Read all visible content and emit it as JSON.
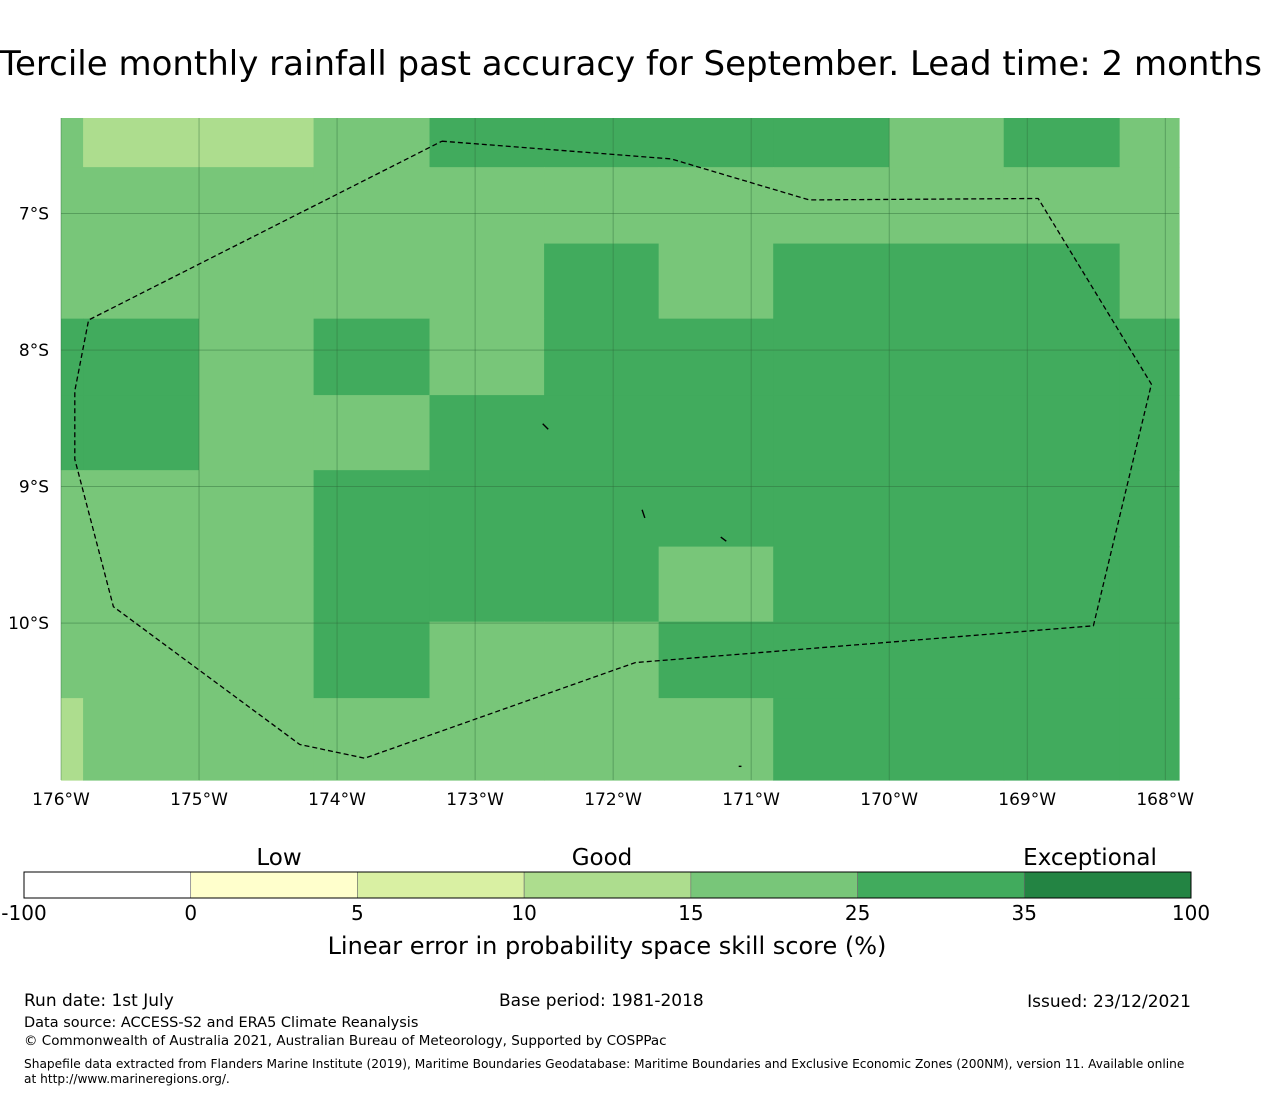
{
  "title": "Tercile monthly rainfall past accuracy for September. Lead time: 2 months",
  "map": {
    "lon_range": [
      -176.0,
      -167.9
    ],
    "lat_range": [
      -11.15,
      -6.3
    ],
    "lon_ticks": [
      {
        "value": -176,
        "label": "176°W"
      },
      {
        "value": -175,
        "label": "175°W"
      },
      {
        "value": -174,
        "label": "174°W"
      },
      {
        "value": -173,
        "label": "173°W"
      },
      {
        "value": -172,
        "label": "172°W"
      },
      {
        "value": -171,
        "label": "171°W"
      },
      {
        "value": -170,
        "label": "170°W"
      },
      {
        "value": -169,
        "label": "169°W"
      },
      {
        "value": -168,
        "label": "168°W"
      }
    ],
    "lat_ticks": [
      {
        "value": -7,
        "label": "7°S"
      },
      {
        "value": -8,
        "label": "8°S"
      },
      {
        "value": -9,
        "label": "9°S"
      },
      {
        "value": -10,
        "label": "10°S"
      }
    ],
    "gridlines": true,
    "boundary_line_style": "dashed",
    "grid_lon_edges": [
      -176.0,
      -175.84,
      -175.0,
      -174.17,
      -173.33,
      -172.5,
      -171.67,
      -170.84,
      -170.0,
      -169.17,
      -168.33,
      -167.9
    ],
    "grid_lat_edges": [
      -6.3,
      -6.66,
      -7.22,
      -7.77,
      -8.33,
      -8.88,
      -9.44,
      -9.99,
      -10.55,
      -11.15
    ],
    "cell_levels": [
      [
        4,
        3,
        3,
        4,
        5,
        5,
        5,
        5,
        4,
        5,
        4
      ],
      [
        4,
        4,
        4,
        4,
        4,
        4,
        4,
        4,
        4,
        4,
        4
      ],
      [
        4,
        4,
        4,
        4,
        4,
        5,
        4,
        5,
        5,
        5,
        4
      ],
      [
        5,
        5,
        4,
        5,
        4,
        5,
        5,
        5,
        5,
        5,
        5
      ],
      [
        5,
        5,
        4,
        4,
        5,
        5,
        5,
        5,
        5,
        5,
        5
      ],
      [
        4,
        4,
        4,
        5,
        5,
        5,
        5,
        5,
        5,
        5,
        5
      ],
      [
        4,
        4,
        4,
        5,
        5,
        5,
        4,
        5,
        5,
        5,
        5
      ],
      [
        4,
        4,
        4,
        5,
        4,
        4,
        5,
        5,
        5,
        5,
        5
      ],
      [
        3,
        4,
        4,
        4,
        4,
        4,
        4,
        5,
        5,
        5,
        5
      ]
    ],
    "eez_boundary": [
      [
        -173.24,
        -6.47
      ],
      [
        -171.58,
        -6.6
      ],
      [
        -170.58,
        -6.9
      ],
      [
        -168.92,
        -6.89
      ],
      [
        -168.1,
        -8.25
      ],
      [
        -168.52,
        -10.02
      ],
      [
        -171.84,
        -10.29
      ],
      [
        -173.8,
        -10.99
      ],
      [
        -174.27,
        -10.89
      ],
      [
        -175.62,
        -9.88
      ],
      [
        -175.9,
        -8.8
      ],
      [
        -175.9,
        -8.3
      ],
      [
        -175.8,
        -7.78
      ],
      [
        -173.24,
        -6.47
      ]
    ],
    "islands": [
      [
        [
          -172.51,
          -8.54
        ],
        [
          -172.47,
          -8.58
        ]
      ],
      [
        [
          -171.79,
          -9.17
        ],
        [
          -171.77,
          -9.23
        ]
      ],
      [
        [
          -171.22,
          -9.37
        ],
        [
          -171.18,
          -9.4
        ]
      ],
      [
        [
          -171.09,
          -11.05
        ],
        [
          -171.07,
          -11.05
        ]
      ]
    ]
  },
  "colorbar": {
    "boundaries": [
      -100,
      0,
      5,
      10,
      15,
      25,
      35,
      100
    ],
    "tick_labels": [
      "-100",
      "0",
      "5",
      "10",
      "15",
      "25",
      "35",
      "100"
    ],
    "colors": [
      "#ffffff",
      "#ffffcc",
      "#d9f0a3",
      "#addd8e",
      "#78c679",
      "#41ab5d",
      "#238443"
    ],
    "categories": [
      "Low",
      "Good",
      "Exceptional"
    ],
    "label": "Linear error in probability space skill score (%)"
  },
  "footer": {
    "run_date": "Run date: 1st July",
    "base_period": "Base period: 1981-2018",
    "issued": "Issued: 23/12/2021",
    "data_source": "Data source: ACCESS-S2 and ERA5 Climate Reanalysis",
    "copyright": "© Commonwealth of Australia 2021, Australian Bureau of Meteorology, Supported by COSPPac",
    "shapefile": "Shapefile data extracted from Flanders Marine Institute (2019), Maritime Boundaries Geodatabase: Maritime Boundaries and Exclusive Economic Zones (200NM), version 11. Available online at http://www.marineregions.org/."
  }
}
